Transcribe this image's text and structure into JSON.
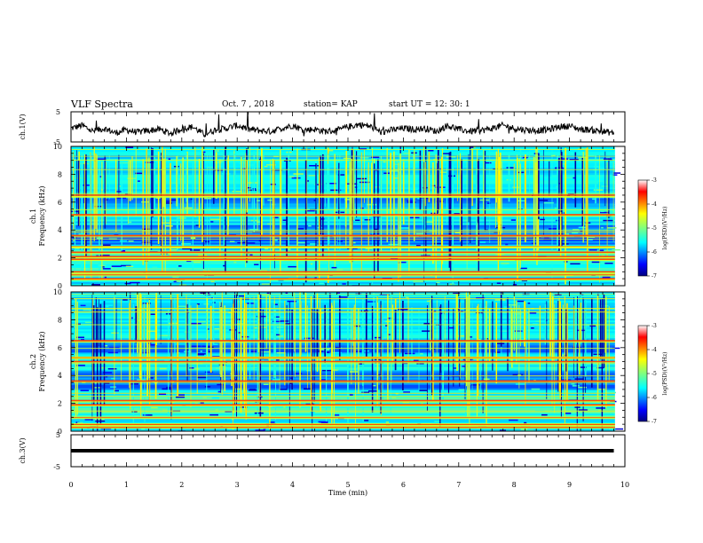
{
  "header": {
    "title": "VLF Spectra",
    "date": "Oct. 7 , 2018",
    "station": "station= KAP",
    "start_time": "start UT = 12: 30: 1"
  },
  "chart_data": [
    {
      "type": "line",
      "title": "",
      "ylabel": "ch.1(V)",
      "xlabel": "",
      "xlim": [
        0,
        10
      ],
      "ylim": [
        -5,
        5
      ],
      "yticks": [
        "5",
        "-5"
      ],
      "series": [
        {
          "x": [
            0,
            0.2,
            0.4,
            0.6,
            0.8,
            1.0,
            1.2,
            1.4,
            1.6,
            1.8,
            2.0,
            2.2,
            2.4,
            2.6,
            2.8,
            3.0,
            3.2,
            3.4,
            3.6,
            3.8,
            4.0,
            4.2,
            4.4,
            4.6,
            4.8,
            5.0,
            5.2,
            5.4,
            5.6,
            5.8,
            6.0,
            6.2,
            6.4,
            6.6,
            6.8,
            7.0,
            7.2,
            7.4,
            7.6,
            7.8,
            8.0,
            8.2,
            8.4,
            8.6,
            8.8,
            9.0,
            9.2,
            9.4,
            9.6,
            9.8
          ],
          "y": [
            -0.5,
            0.5,
            -1.5,
            -0.5,
            -2,
            -1,
            -1.8,
            -1.2,
            -0.8,
            -2.2,
            -0.5,
            0,
            -2.5,
            -1,
            -0.5,
            0.5,
            -0.8,
            -1.2,
            -1.5,
            -0.5,
            0.5,
            -1,
            -0.8,
            -1.5,
            -1.2,
            0,
            0.8,
            0.2,
            -1.8,
            -1,
            -0.5,
            -0.8,
            -0.5,
            -1.5,
            0.5,
            -0.8,
            -1.5,
            -1.2,
            -0.5,
            0.5,
            -0.5,
            -1,
            -1.2,
            -1,
            0,
            0.3,
            -0.8,
            -1,
            -1.5,
            -2
          ]
        }
      ]
    },
    {
      "type": "heatmap",
      "title": "",
      "ylabel": "ch.1 Frequency (kHz)",
      "xlabel": "",
      "xlim": [
        0,
        10
      ],
      "ylim": [
        0,
        10
      ],
      "yticks": [
        "0",
        "2",
        "4",
        "6",
        "8",
        "10"
      ],
      "colorbar": {
        "label": "log(PSD)(V²/Hz)",
        "range": [
          -7,
          -3
        ],
        "ticks": [
          "-3",
          "-4",
          "-5",
          "-6",
          "-7"
        ]
      },
      "bands_khz": [
        0.5,
        0.8,
        1.0,
        1.9,
        2.1,
        2.4,
        2.8,
        3.6,
        5.1,
        6.5
      ]
    },
    {
      "type": "heatmap",
      "title": "",
      "ylabel": "ch.2 Frequency (kHz)",
      "xlabel": "",
      "xlim": [
        0,
        10
      ],
      "ylim": [
        0,
        10
      ],
      "yticks": [
        "0",
        "2",
        "4",
        "6",
        "8",
        "10"
      ],
      "colorbar": {
        "label": "log(PSD)(V²/Hz)",
        "range": [
          -7,
          -3
        ],
        "ticks": [
          "-3",
          "-4",
          "-5",
          "-6",
          "-7"
        ]
      },
      "bands_khz": [
        0.3,
        0.5,
        1.0,
        1.9,
        2.2,
        3.6,
        5.0,
        5.3,
        6.5
      ]
    },
    {
      "type": "line",
      "title": "",
      "ylabel": "ch.3(V)",
      "xlabel": "Time (min)",
      "xlim": [
        0,
        10
      ],
      "ylim": [
        -5,
        5
      ],
      "yticks": [
        "5",
        "-5"
      ],
      "xticks": [
        "0",
        "1",
        "2",
        "3",
        "4",
        "5",
        "6",
        "7",
        "8",
        "9",
        "10"
      ],
      "series": [
        {
          "x": [
            0,
            9.8
          ],
          "y": [
            0,
            0
          ]
        }
      ]
    }
  ]
}
